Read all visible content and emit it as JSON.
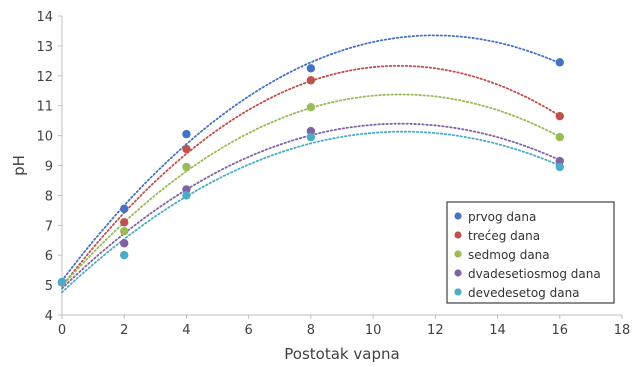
{
  "chart_data": {
    "type": "scatter",
    "title": "",
    "xlabel": "Postotak vapna",
    "ylabel": "pH",
    "xlim": [
      0,
      18
    ],
    "ylim": [
      4,
      14
    ],
    "xticks": [
      0,
      2,
      4,
      6,
      8,
      10,
      12,
      14,
      16,
      18
    ],
    "yticks": [
      4,
      5,
      6,
      7,
      8,
      9,
      10,
      11,
      12,
      13,
      14
    ],
    "grid": false,
    "legend": "bottom-right",
    "trendline": "polynomial-2, dotted",
    "x": [
      0,
      2,
      4,
      8,
      16
    ],
    "series": [
      {
        "name": "prvog dana",
        "color": "#4472c4",
        "values": [
          5.1,
          7.55,
          10.05,
          12.25,
          12.45
        ]
      },
      {
        "name": "trećeg dana",
        "color": "#c0504d",
        "values": [
          5.1,
          7.1,
          9.55,
          11.85,
          10.65
        ]
      },
      {
        "name": "sedmog dana",
        "color": "#9bbb59",
        "values": [
          5.1,
          6.8,
          8.95,
          10.95,
          9.95
        ]
      },
      {
        "name": "dvadesetiosmog dana",
        "color": "#8064a2",
        "values": [
          5.1,
          6.4,
          8.2,
          10.15,
          9.15
        ]
      },
      {
        "name": "devedesetog dana",
        "color": "#4bacc6",
        "values": [
          5.1,
          6.0,
          8.0,
          9.95,
          8.95
        ]
      }
    ]
  }
}
